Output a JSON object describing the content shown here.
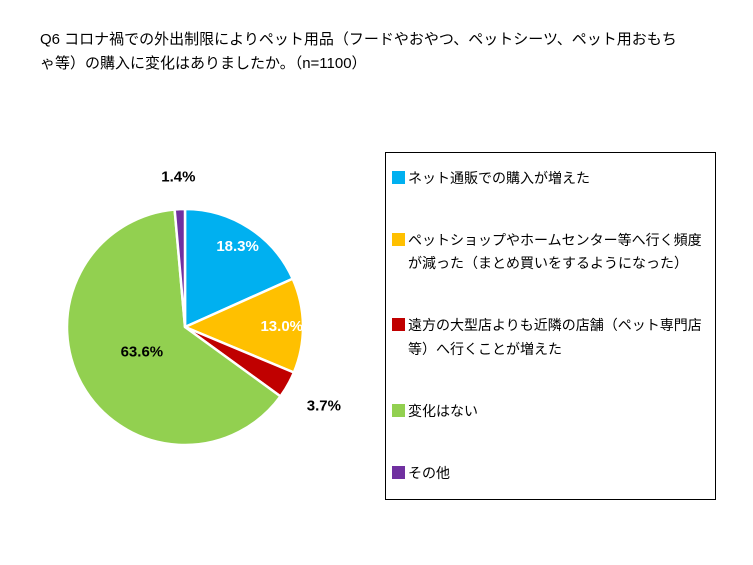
{
  "title": "Q6 コロナ禍での外出制限によりペット用品（フードやおやつ、ペットシーツ、ペット用おもちゃ等）の購入に変化はありましたか。（n=1100）",
  "chart_data": {
    "type": "pie",
    "title": "Q6 コロナ禍での外出制限によりペット用品（フードやおやつ、ペットシーツ、ペット用おもちゃ等）の購入に変化はありましたか。",
    "n": 1100,
    "legend_position": "right",
    "start_angle_deg": 0,
    "direction": "clockwise",
    "slices": [
      {
        "label": "ネット通販での購入が増えた",
        "value": 18.3,
        "data_label": "18.3%",
        "color": "#00B0F0",
        "label_color": "#FFFFFF"
      },
      {
        "label": "ペットショップやホームセンター等へ行く頻度が減った（まとめ買いをするようになった）",
        "value": 13.0,
        "data_label": "13.0%",
        "color": "#FFC000",
        "label_color": "#FFFFFF"
      },
      {
        "label": "遠方の大型店よりも近隣の店舗（ペット専門店等）へ行くことが増えた",
        "value": 3.7,
        "data_label": "3.7%",
        "color": "#C00000",
        "label_color": "#000000"
      },
      {
        "label": "変化はない",
        "value": 63.6,
        "data_label": "63.6%",
        "color": "#92D050",
        "label_color": "#000000"
      },
      {
        "label": "その他",
        "value": 1.4,
        "data_label": "1.4%",
        "color": "#7030A0",
        "label_color": "#000000"
      }
    ]
  }
}
